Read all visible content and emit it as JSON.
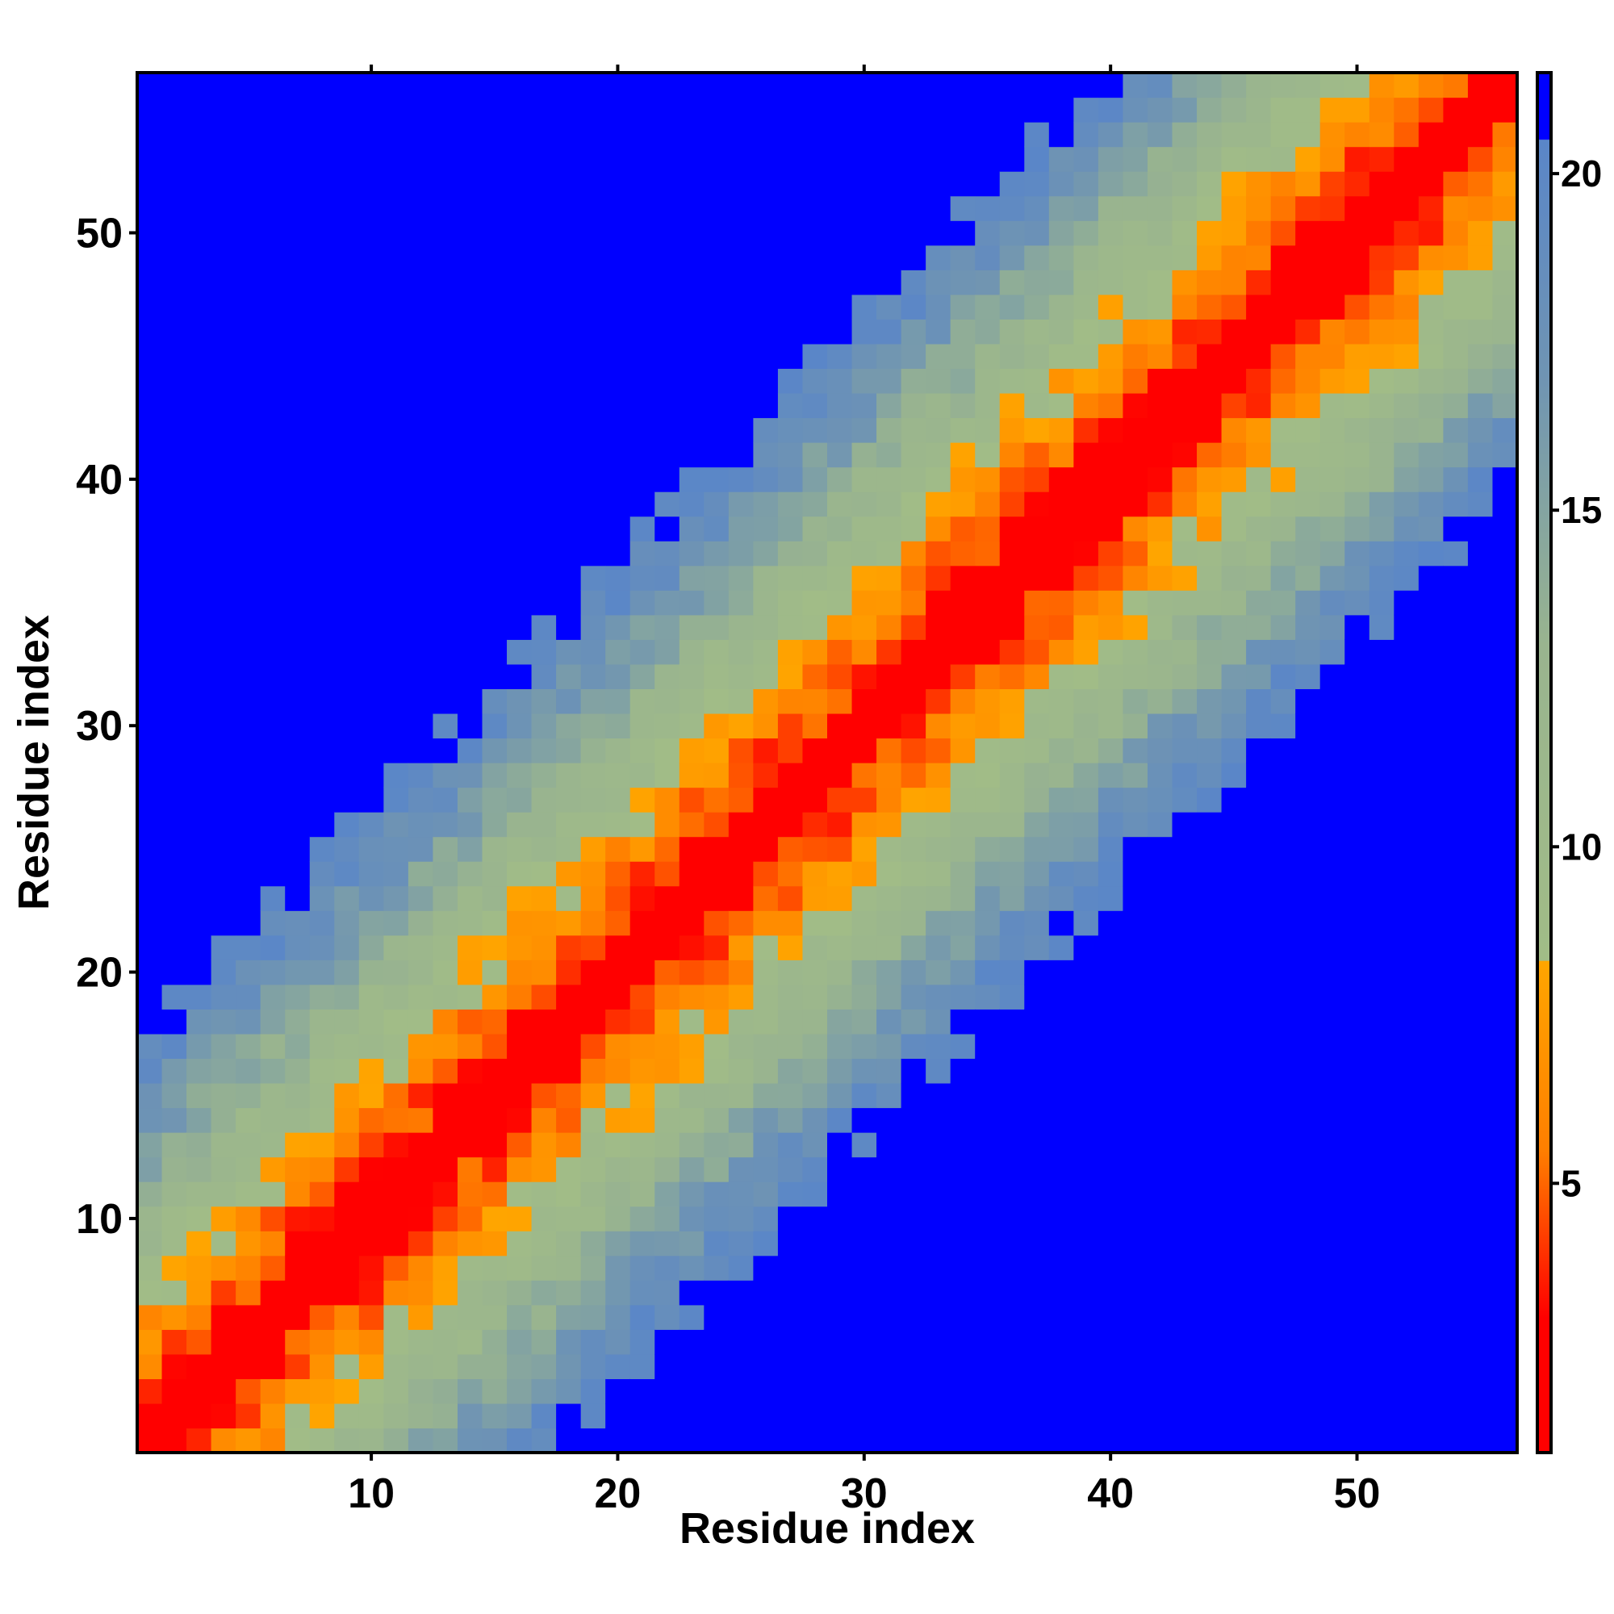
{
  "chart_data": {
    "type": "heatmap",
    "title": "",
    "xlabel": "Residue index",
    "ylabel": "Residue index",
    "n_residues": 56,
    "xlim": [
      0.5,
      56.5
    ],
    "ylim": [
      0.5,
      56.5
    ],
    "x_ticks": [
      10,
      20,
      30,
      40,
      50
    ],
    "y_ticks": [
      10,
      20,
      30,
      40,
      50
    ],
    "x_tick_labels": [
      "10",
      "20",
      "30",
      "40",
      "50"
    ],
    "y_tick_labels": [
      "10",
      "20",
      "30",
      "40",
      "50"
    ],
    "grid": false,
    "legend": "colorbar-right",
    "colorbar": {
      "min": 1,
      "max": 21.5,
      "ticks": [
        5,
        10,
        15,
        20
      ],
      "tick_labels": [
        "5",
        "10",
        "15",
        "20"
      ],
      "stops": [
        {
          "value": 1.0,
          "color": "#ff0000"
        },
        {
          "value": 3.0,
          "color": "#ff0000"
        },
        {
          "value": 5.5,
          "color": "#ff7f00"
        },
        {
          "value": 8.3,
          "color": "#ffa500"
        },
        {
          "value": 8.31,
          "color": "#a1bc87"
        },
        {
          "value": 13.0,
          "color": "#99b48f"
        },
        {
          "value": 17.0,
          "color": "#6f94b3"
        },
        {
          "value": 20.5,
          "color": "#5a86c8"
        },
        {
          "value": 20.51,
          "color": "#0000ff"
        },
        {
          "value": 21.5,
          "color": "#0000ff"
        }
      ]
    },
    "values_description": "distance-like value per residue pair (i, j), symmetric-ish, ~1.5 on diagonal rising with |i-j|; values above 20.5 shown blue",
    "band_model": {
      "diagonal_value": 1.5,
      "slope_per_residue": 1.15,
      "cutoff": 20.5
    }
  }
}
